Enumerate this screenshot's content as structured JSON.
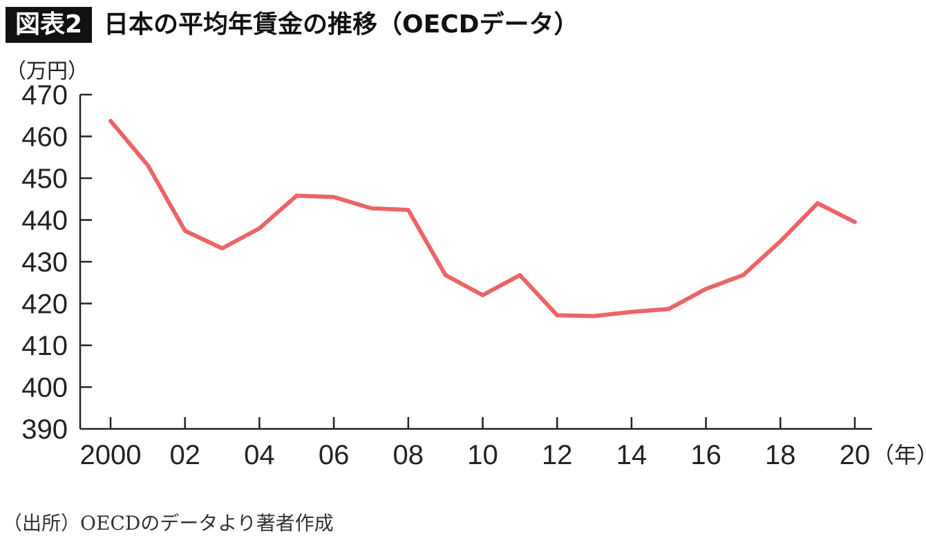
{
  "figure_label": "図表2",
  "title": "日本の平均年賃金の推移（OECDデータ）",
  "source": "（出所）OECDのデータより著者作成",
  "chart_data": {
    "type": "line",
    "title": "日本の平均年賃金の推移（OECDデータ）",
    "ylabel": "（万円）",
    "xlabel": "（年）",
    "ylim": [
      390,
      470
    ],
    "xlim": [
      2000,
      2020
    ],
    "yticks": [
      390,
      400,
      410,
      420,
      430,
      440,
      450,
      460,
      470
    ],
    "xticks": [
      2000,
      2002,
      2004,
      2006,
      2008,
      2010,
      2012,
      2014,
      2016,
      2018,
      2020
    ],
    "xtick_labels": [
      "2000",
      "02",
      "04",
      "06",
      "08",
      "10",
      "12",
      "14",
      "16",
      "18",
      "20"
    ],
    "grid": false,
    "series": [
      {
        "name": "平均年賃金",
        "color": "#ec6466",
        "x": [
          2000,
          2001,
          2002,
          2003,
          2004,
          2005,
          2006,
          2007,
          2008,
          2009,
          2010,
          2011,
          2012,
          2013,
          2014,
          2015,
          2016,
          2017,
          2018,
          2019,
          2020
        ],
        "values": [
          463.7,
          453.1,
          437.4,
          433.2,
          438.0,
          445.8,
          445.5,
          442.8,
          442.4,
          426.8,
          422.0,
          426.8,
          417.2,
          417.0,
          418.0,
          418.7,
          423.5,
          426.8,
          434.9,
          444.0,
          439.5
        ]
      }
    ]
  }
}
